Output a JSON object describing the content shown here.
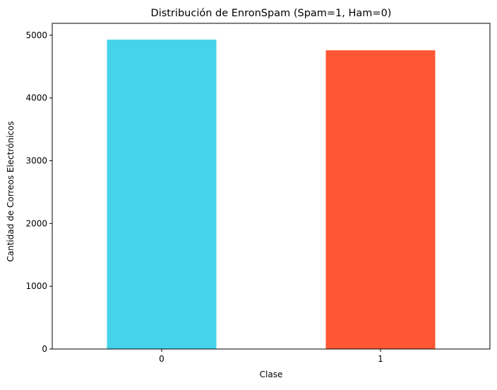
{
  "chart_data": {
    "type": "bar",
    "title": "Distribución de EnronSpam (Spam=1, Ham=0)",
    "xlabel": "Clase",
    "ylabel": "Cantidad de Correos Electrónicos",
    "categories": [
      "0",
      "1"
    ],
    "values": [
      4930,
      4760
    ],
    "colors": [
      "#45d3ea",
      "#ff5733"
    ],
    "ylim": [
      0,
      5190
    ],
    "yticks": [
      0,
      1000,
      2000,
      3000,
      4000,
      5000
    ],
    "ytick_labels": [
      "0",
      "1000",
      "2000",
      "3000",
      "4000",
      "5000"
    ],
    "grid": false,
    "legend": "none"
  }
}
